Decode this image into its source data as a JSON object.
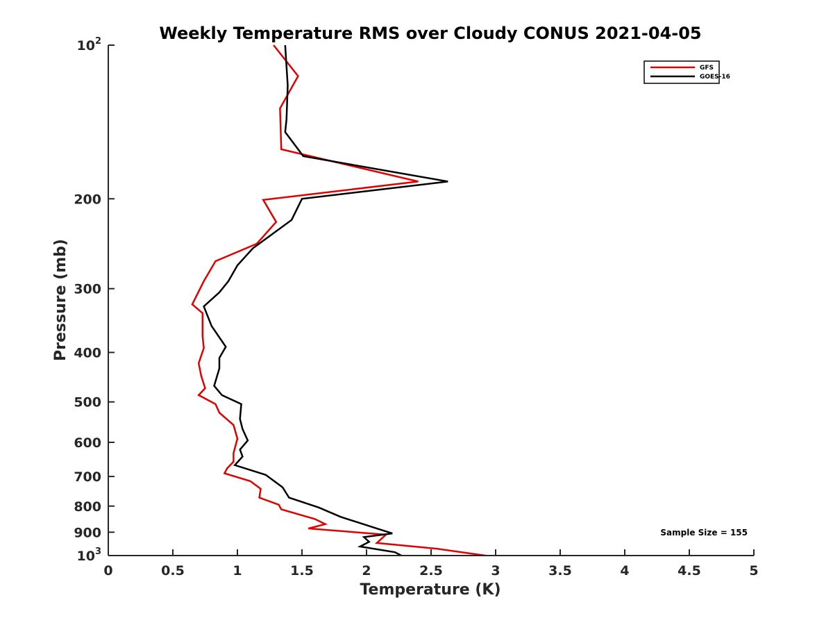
{
  "chart_data": {
    "type": "line",
    "title": "Weekly Temperature RMS over Cloudy CONUS 2021-04-05",
    "xlabel": "Temperature (K)",
    "ylabel": "Pressure (mb)",
    "xlim": [
      0,
      5
    ],
    "ylim": [
      1000,
      100
    ],
    "yscale": "log",
    "y_reversed": true,
    "grid": false,
    "legend_position": "top-right",
    "x_ticks": [
      {
        "value": 0,
        "label": "0"
      },
      {
        "value": 0.5,
        "label": "0.5"
      },
      {
        "value": 1,
        "label": "1"
      },
      {
        "value": 1.5,
        "label": "1.5"
      },
      {
        "value": 2,
        "label": "2"
      },
      {
        "value": 2.5,
        "label": "2.5"
      },
      {
        "value": 3,
        "label": "3"
      },
      {
        "value": 3.5,
        "label": "3.5"
      },
      {
        "value": 4,
        "label": "4"
      },
      {
        "value": 4.5,
        "label": "4.5"
      },
      {
        "value": 5,
        "label": "5"
      }
    ],
    "y_ticks": [
      {
        "value": 100,
        "base": "10",
        "sup": "2"
      },
      {
        "value": 200,
        "base": "200",
        "sup": ""
      },
      {
        "value": 300,
        "base": "300",
        "sup": ""
      },
      {
        "value": 400,
        "base": "400",
        "sup": ""
      },
      {
        "value": 500,
        "base": "500",
        "sup": ""
      },
      {
        "value": 600,
        "base": "600",
        "sup": ""
      },
      {
        "value": 700,
        "base": "700",
        "sup": ""
      },
      {
        "value": 800,
        "base": "800",
        "sup": ""
      },
      {
        "value": 900,
        "base": "900",
        "sup": ""
      },
      {
        "value": 1000,
        "base": "10",
        "sup": "3"
      }
    ],
    "series": [
      {
        "name": "GFS",
        "color": "#e00000",
        "points": [
          [
            1.28,
            100
          ],
          [
            1.47,
            115
          ],
          [
            1.33,
            133
          ],
          [
            1.34,
            160
          ],
          [
            2.4,
            185
          ],
          [
            1.2,
            201
          ],
          [
            1.3,
            222
          ],
          [
            1.15,
            245
          ],
          [
            0.83,
            265
          ],
          [
            0.74,
            290
          ],
          [
            0.65,
            322
          ],
          [
            0.73,
            335
          ],
          [
            0.73,
            372
          ],
          [
            0.74,
            392
          ],
          [
            0.7,
            420
          ],
          [
            0.72,
            445
          ],
          [
            0.75,
            470
          ],
          [
            0.7,
            485
          ],
          [
            0.83,
            505
          ],
          [
            0.86,
            525
          ],
          [
            0.97,
            555
          ],
          [
            1.0,
            590
          ],
          [
            0.97,
            630
          ],
          [
            0.97,
            655
          ],
          [
            0.92,
            675
          ],
          [
            0.9,
            690
          ],
          [
            1.1,
            715
          ],
          [
            1.18,
            740
          ],
          [
            1.17,
            770
          ],
          [
            1.32,
            795
          ],
          [
            1.34,
            812
          ],
          [
            1.6,
            848
          ],
          [
            1.68,
            868
          ],
          [
            1.55,
            885
          ],
          [
            2.15,
            910
          ],
          [
            2.08,
            945
          ],
          [
            2.55,
            970
          ],
          [
            2.92,
            1000
          ]
        ]
      },
      {
        "name": "GOES-16",
        "color": "#000000",
        "points": [
          [
            1.37,
            100
          ],
          [
            1.39,
            120
          ],
          [
            1.38,
            140
          ],
          [
            1.37,
            148
          ],
          [
            1.51,
            165
          ],
          [
            2.63,
            185
          ],
          [
            1.5,
            200
          ],
          [
            1.42,
            220
          ],
          [
            1.12,
            250
          ],
          [
            1.0,
            270
          ],
          [
            0.93,
            290
          ],
          [
            0.86,
            305
          ],
          [
            0.74,
            325
          ],
          [
            0.8,
            355
          ],
          [
            0.91,
            390
          ],
          [
            0.86,
            410
          ],
          [
            0.86,
            430
          ],
          [
            0.82,
            465
          ],
          [
            0.88,
            485
          ],
          [
            1.03,
            505
          ],
          [
            1.02,
            540
          ],
          [
            1.04,
            565
          ],
          [
            1.08,
            595
          ],
          [
            1.02,
            620
          ],
          [
            1.04,
            640
          ],
          [
            0.98,
            665
          ],
          [
            1.22,
            695
          ],
          [
            1.35,
            735
          ],
          [
            1.4,
            770
          ],
          [
            1.63,
            805
          ],
          [
            1.8,
            840
          ],
          [
            2.14,
            895
          ],
          [
            2.2,
            905
          ],
          [
            1.98,
            920
          ],
          [
            2.02,
            940
          ],
          [
            1.95,
            960
          ],
          [
            2.22,
            985
          ],
          [
            2.27,
            1000
          ]
        ]
      }
    ],
    "annotations": [
      {
        "text": "Sample Size = 155",
        "position": "bottom-right"
      }
    ]
  }
}
